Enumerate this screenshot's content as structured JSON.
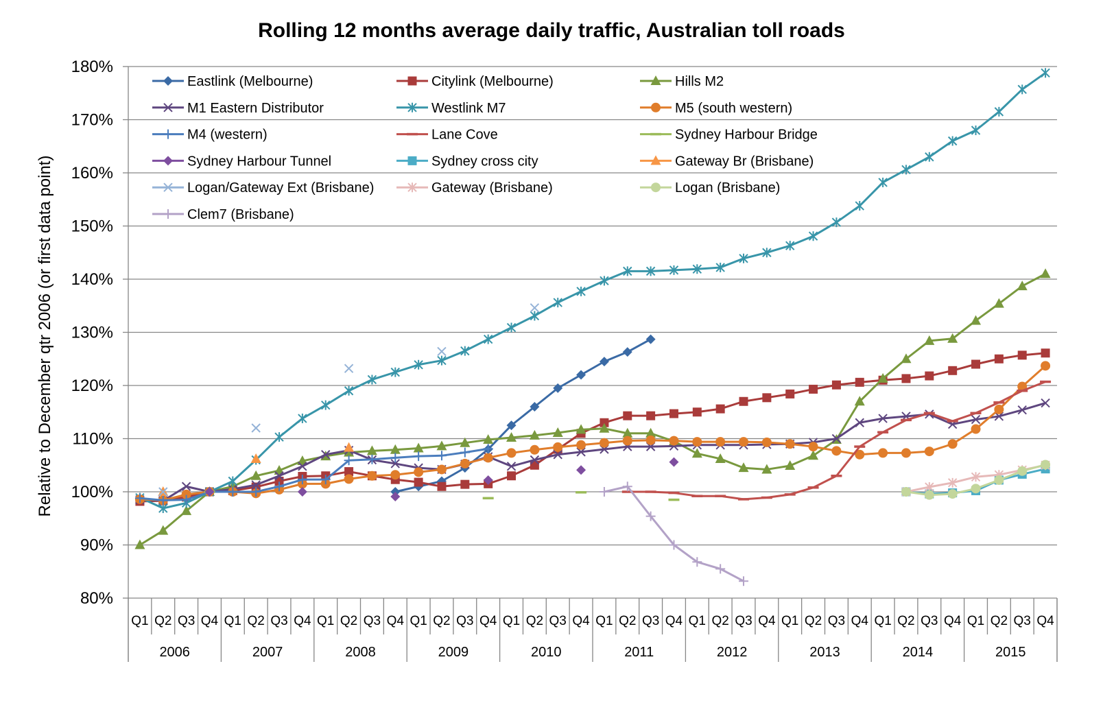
{
  "chart_data": {
    "type": "line",
    "title": "Rolling 12 months average daily traffic, Australian toll roads",
    "ylabel": "Relative to December qtr 2006 (or first data point)",
    "xlabel": "",
    "ylim": [
      80,
      180
    ],
    "yticks": [
      "80%",
      "90%",
      "100%",
      "110%",
      "120%",
      "130%",
      "140%",
      "150%",
      "160%",
      "170%",
      "180%"
    ],
    "years": [
      "2006",
      "2007",
      "2008",
      "2009",
      "2010",
      "2011",
      "2012",
      "2013",
      "2014",
      "2015"
    ],
    "quarters": [
      "Q1",
      "Q2",
      "Q3",
      "Q4"
    ],
    "grid": "horizontal",
    "legend_position": "top-left",
    "series": [
      {
        "name": "Eastlink (Melbourne)",
        "color": "#3A6AA5",
        "marker": "diamond",
        "start": 11,
        "values": [
          100,
          101,
          102,
          104.5,
          108,
          112.5,
          116,
          119.5,
          122,
          124.5,
          126.3,
          128.7
        ]
      },
      {
        "name": "Citylink (Melbourne)",
        "color": "#A93B3A",
        "marker": "square",
        "start": 0,
        "values": [
          98.2,
          98.3,
          99,
          100,
          100.2,
          100.9,
          102,
          102.9,
          103,
          103.8,
          103,
          102.3,
          101.8,
          101,
          101.4,
          101.5,
          103,
          105,
          108,
          111,
          113,
          114.3,
          114.3,
          114.7,
          115,
          115.6,
          117,
          117.7,
          118.4,
          119.3,
          120.1,
          120.6,
          121,
          121.3,
          121.8,
          122.8,
          124,
          125,
          125.7,
          126.1
        ]
      },
      {
        "name": "Hills M2",
        "color": "#79993E",
        "marker": "triangle",
        "start": 0,
        "values": [
          90,
          92.7,
          96.4,
          100,
          101,
          103,
          104,
          105.8,
          106.7,
          107.4,
          107.7,
          107.9,
          108.2,
          108.6,
          109.2,
          109.8,
          110.2,
          110.6,
          111.1,
          111.7,
          111.9,
          111,
          111,
          109.5,
          107.2,
          106.2,
          104.5,
          104.2,
          104.9,
          106.8,
          109.8,
          117,
          121.3,
          125,
          128.4,
          128.8,
          132.2,
          135.4,
          138.7,
          141
        ]
      },
      {
        "name": "M1 Eastern Distributor",
        "color": "#5E467F",
        "marker": "x",
        "start": 0,
        "values": [
          98.5,
          98.3,
          101,
          100,
          100.5,
          101.3,
          103,
          104.8,
          107,
          107.8,
          106,
          105.3,
          104.5,
          104.2,
          105.2,
          106.6,
          104.8,
          106,
          107,
          107.5,
          108,
          108.5,
          108.5,
          108.6,
          108.8,
          108.8,
          108.8,
          108.9,
          109,
          109.3,
          110,
          113,
          113.8,
          114.2,
          114.6,
          112.7,
          113.6,
          114.2,
          115.4,
          116.7
        ]
      },
      {
        "name": "Westlink M7",
        "color": "#3895A9",
        "marker": "asterisk",
        "start": 0,
        "values": [
          98.9,
          96.9,
          97.9,
          100,
          102,
          106,
          110.3,
          113.8,
          116.3,
          119,
          121.1,
          122.5,
          123.9,
          124.7,
          126.5,
          128.7,
          130.9,
          133.1,
          135.6,
          137.7,
          139.7,
          141.5,
          141.5,
          141.7,
          141.9,
          142.2,
          143.9,
          145,
          146.3,
          148.1,
          150.7,
          153.8,
          158.2,
          160.6,
          163,
          166,
          168,
          171.5,
          175.7,
          178.8
        ]
      },
      {
        "name": "M5 (south western)",
        "color": "#E07D2B",
        "marker": "circle",
        "start": 0,
        "values": [
          98.6,
          98.4,
          99.5,
          100,
          100,
          99.7,
          100.4,
          101.5,
          101.5,
          102.4,
          103,
          103.2,
          103.7,
          104.2,
          105.3,
          106.4,
          107.3,
          107.9,
          108.4,
          108.8,
          109.2,
          109.6,
          109.7,
          109.6,
          109.4,
          109.4,
          109.4,
          109.3,
          109,
          108.5,
          107.7,
          107,
          107.3,
          107.3,
          107.6,
          109,
          111.8,
          115.5,
          119.8,
          123.7
        ]
      },
      {
        "name": "M4 (western)",
        "color": "#4B7DBD",
        "marker": "plus",
        "start": 0,
        "values": [
          98.8,
          98.4,
          98.5,
          100,
          100,
          100,
          101,
          102.3,
          102.3,
          105.9,
          106.1,
          106.4,
          106.7,
          106.8,
          107.4,
          108.1
        ]
      },
      {
        "name": "Lane Cove",
        "color": "#C0504D",
        "marker": "dash",
        "start": 21,
        "values": [
          100,
          100,
          99.8,
          99.2,
          99.2,
          98.6,
          98.9,
          99.5,
          100.8,
          103,
          108.5,
          111.2,
          113.5,
          114.8,
          113.3,
          114.8,
          116.8,
          119,
          120.7
        ]
      },
      {
        "name": "Sydney Harbour Bridge",
        "color": "#9BBB59",
        "marker": "dash",
        "start": 0,
        "line": false,
        "values": [
          null,
          null,
          null,
          100,
          null,
          null,
          null,
          null,
          null,
          null,
          null,
          null,
          null,
          null,
          null,
          98.8,
          null,
          null,
          null,
          99.9,
          null,
          null,
          null,
          98.5
        ]
      },
      {
        "name": "Sydney Harbour Tunnel",
        "color": "#7E4E9F",
        "marker": "diamond",
        "start": 0,
        "line": false,
        "values": [
          null,
          null,
          null,
          100,
          null,
          null,
          null,
          100,
          null,
          null,
          null,
          99.1,
          null,
          null,
          null,
          102.2,
          null,
          null,
          null,
          104.1,
          null,
          null,
          null,
          105.6
        ]
      },
      {
        "name": "Sydney cross city",
        "color": "#4BACC6",
        "marker": "square",
        "start": 33,
        "values": [
          100,
          99.6,
          99.8,
          100.2,
          102.2,
          103.3,
          104.3
        ]
      },
      {
        "name": "Gateway Br (Brisbane)",
        "color": "#F79646",
        "marker": "triangle",
        "start": 0,
        "line": false,
        "values": [
          null,
          100,
          null,
          null,
          null,
          106.2,
          null,
          null,
          null,
          108.3
        ]
      },
      {
        "name": "Logan/Gateway Ext (Brisbane)",
        "color": "#95B3D7",
        "marker": "x",
        "start": 0,
        "line": false,
        "values": [
          null,
          100,
          null,
          null,
          null,
          112,
          null,
          null,
          null,
          123.2,
          null,
          null,
          null,
          126.4,
          null,
          null,
          null,
          134.6
        ]
      },
      {
        "name": "Gateway (Brisbane)",
        "color": "#E6B9B8",
        "marker": "asterisk",
        "start": 33,
        "values": [
          100,
          100.9,
          101.7,
          102.8,
          103.2,
          104.1,
          105
        ]
      },
      {
        "name": "Logan (Brisbane)",
        "color": "#C3D69B",
        "marker": "circle",
        "start": 33,
        "values": [
          100,
          99.4,
          99.6,
          100.6,
          102.2,
          103.9,
          105.1
        ]
      },
      {
        "name": "Clem7 (Brisbane)",
        "color": "#B3A2C7",
        "marker": "plus",
        "start": 20,
        "values": [
          100,
          101,
          95.4,
          90,
          86.8,
          85.5,
          83.2
        ]
      }
    ]
  }
}
